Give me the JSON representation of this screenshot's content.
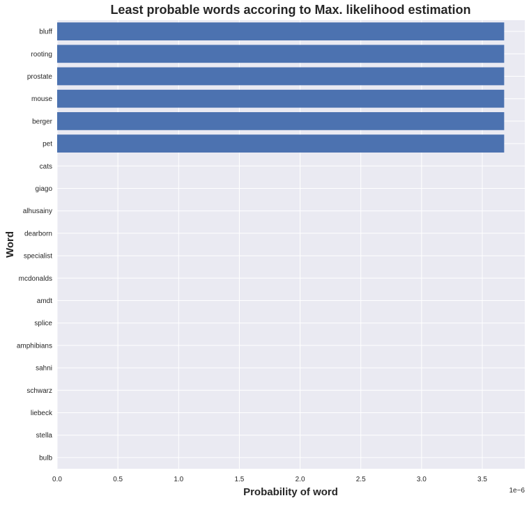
{
  "chart_data": {
    "type": "bar",
    "orientation": "horizontal",
    "title": "Least probable words accoring to Max. likelihood estimation",
    "xlabel": "Probability of word",
    "ylabel": "Word",
    "x_scale_label": "1e−6",
    "x_scale": 1e-06,
    "xlim": [
      0,
      3.85
    ],
    "x_ticks": [
      0,
      0.5,
      1.0,
      1.5,
      2.0,
      2.5,
      3.0,
      3.5
    ],
    "x_tick_labels": [
      "0.0",
      "0.5",
      "1.0",
      "1.5",
      "2.0",
      "2.5",
      "3.0",
      "3.5"
    ],
    "grid": true,
    "bar_color": "#4c72b0",
    "background_color": "#eaeaf2",
    "grid_color": "#ffffff",
    "categories": [
      "bluff",
      "rooting",
      "prostate",
      "mouse",
      "berger",
      "pet",
      "cats",
      "giago",
      "alhusainy",
      "dearborn",
      "specialist",
      "mcdonalds",
      "amdt",
      "splice",
      "amphibians",
      "sahni",
      "schwarz",
      "liebeck",
      "stella",
      "bulb"
    ],
    "values": [
      3.68,
      3.68,
      3.68,
      3.68,
      3.68,
      3.68,
      0,
      0,
      0,
      0,
      0,
      0,
      0,
      0,
      0,
      0,
      0,
      0,
      0,
      0
    ]
  }
}
